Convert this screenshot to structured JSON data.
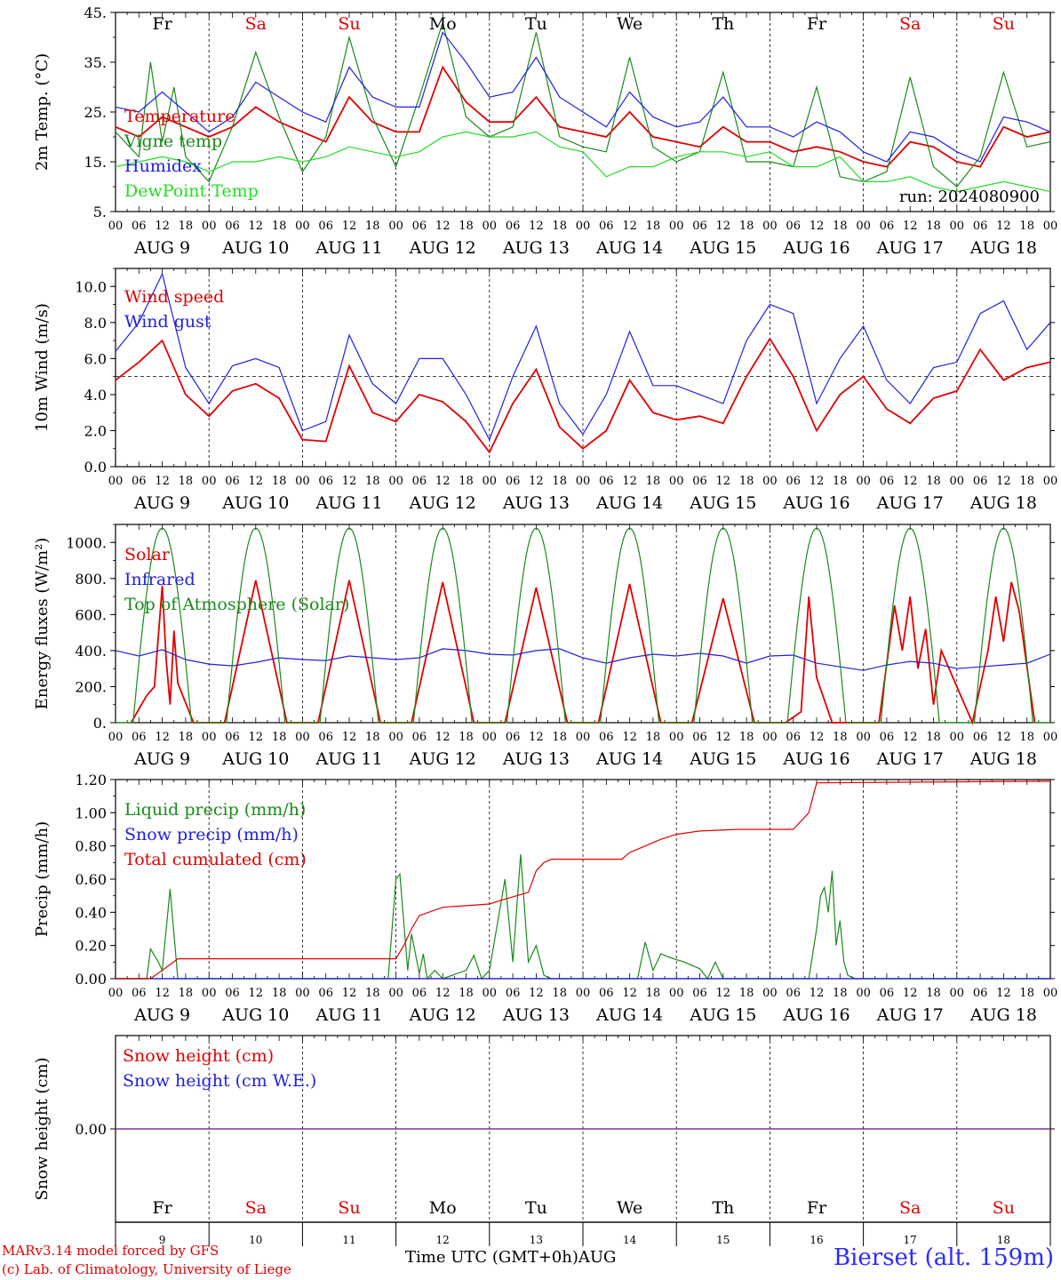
{
  "footer": {
    "credit_line1": "MARv3.14 model forced by GFS",
    "credit_line2": "(c) Lab. of Climatology, University of Liege",
    "station": "Bierset (alt. 159m)",
    "xaxis_title": "Time UTC (GMT+0h)AUG"
  },
  "colors": {
    "red": "#e00000",
    "green": "#1a8a1a",
    "blue": "#2020e0",
    "lightgreen": "#22dd22",
    "purple": "#7a2a9a"
  },
  "days": {
    "names": [
      "Fr",
      "Sa",
      "Su",
      "Mo",
      "Tu",
      "We",
      "Th",
      "Fr",
      "Sa",
      "Su"
    ],
    "weekend": [
      false,
      true,
      true,
      false,
      false,
      false,
      false,
      false,
      true,
      true
    ],
    "dates": [
      "AUG  9",
      "AUG 10",
      "AUG 11",
      "AUG 12",
      "AUG 13",
      "AUG 14",
      "AUG 15",
      "AUG 16",
      "AUG 17",
      "AUG 18"
    ],
    "numbers": [
      "9",
      "10",
      "11",
      "12",
      "13",
      "14",
      "15",
      "16",
      "17",
      "18"
    ],
    "hour_ticks": [
      "00",
      "06",
      "12",
      "18"
    ],
    "final_tick": "00"
  },
  "chart_data": [
    {
      "type": "line",
      "ylabel": "2m Temp. (°C)",
      "ylim": [
        5,
        45
      ],
      "yticks": [
        "5.",
        "15.",
        "25.",
        "35.",
        "45."
      ],
      "ytick_values": [
        5,
        15,
        25,
        35,
        45
      ],
      "run_label": "run: 2024080900",
      "x_unit": "hours since AUG 9 00 UTC",
      "series": [
        {
          "name": "Temperature",
          "color": "red",
          "x": [
            0,
            6,
            12,
            18,
            24,
            30,
            36,
            42,
            48,
            54,
            60,
            66,
            72,
            78,
            84,
            90,
            96,
            102,
            108,
            114,
            120,
            126,
            132,
            138,
            144,
            150,
            156,
            162,
            168,
            174,
            180,
            186,
            192,
            198,
            204,
            210,
            216,
            222,
            228,
            234,
            240
          ],
          "y": [
            22,
            20,
            24,
            22,
            20,
            22,
            26,
            23,
            21,
            19,
            28,
            23,
            21,
            21,
            34,
            27,
            23,
            23,
            28,
            22,
            21,
            20,
            25,
            20,
            19,
            18,
            22,
            19,
            19,
            17,
            18,
            17,
            15,
            14,
            19,
            18,
            15,
            14,
            22,
            20,
            21
          ]
        },
        {
          "name": "Vigne temp",
          "color": "green",
          "x": [
            0,
            6,
            9,
            12,
            15,
            18,
            24,
            30,
            36,
            42,
            48,
            54,
            60,
            66,
            72,
            78,
            84,
            90,
            96,
            102,
            108,
            114,
            120,
            126,
            132,
            138,
            144,
            150,
            156,
            162,
            168,
            174,
            180,
            186,
            192,
            198,
            204,
            210,
            216,
            222,
            228,
            234,
            240
          ],
          "y": [
            21,
            16,
            35,
            19,
            30,
            16,
            11,
            22,
            37,
            24,
            13,
            20,
            40,
            24,
            14,
            28,
            43,
            24,
            20,
            22,
            41,
            20,
            18,
            17,
            36,
            18,
            15,
            17,
            33,
            15,
            15,
            14,
            30,
            12,
            11,
            13,
            32,
            14,
            10,
            16,
            33,
            18,
            19
          ]
        },
        {
          "name": "Humidex",
          "color": "blue",
          "x": [
            0,
            6,
            12,
            18,
            24,
            30,
            36,
            42,
            48,
            54,
            60,
            66,
            72,
            78,
            84,
            90,
            96,
            102,
            108,
            114,
            120,
            126,
            132,
            138,
            144,
            150,
            156,
            162,
            168,
            174,
            180,
            186,
            192,
            198,
            204,
            210,
            216,
            222,
            228,
            234,
            240
          ],
          "y": [
            26,
            25,
            29,
            25,
            21,
            24,
            31,
            28,
            25,
            23,
            34,
            28,
            26,
            26,
            41,
            35,
            28,
            29,
            36,
            28,
            25,
            22,
            29,
            24,
            22,
            23,
            28,
            22,
            22,
            20,
            23,
            21,
            17,
            15,
            21,
            20,
            17,
            15,
            24,
            23,
            21
          ]
        },
        {
          "name": "DewPoint Temp",
          "color": "lightgreen",
          "x": [
            0,
            6,
            12,
            18,
            24,
            30,
            36,
            42,
            48,
            54,
            60,
            66,
            72,
            78,
            84,
            90,
            96,
            102,
            108,
            114,
            120,
            126,
            132,
            138,
            144,
            150,
            156,
            162,
            168,
            174,
            180,
            186,
            192,
            198,
            204,
            210,
            216,
            222,
            228,
            234,
            240
          ],
          "y": [
            14,
            15,
            16,
            15,
            13,
            15,
            15,
            16,
            15,
            16,
            18,
            17,
            16,
            17,
            20,
            21,
            20,
            20,
            21,
            18,
            17,
            12,
            14,
            14,
            16,
            17,
            17,
            16,
            17,
            14,
            14,
            16,
            11,
            11,
            12,
            10,
            9,
            10,
            11,
            10,
            9
          ]
        }
      ]
    },
    {
      "type": "line",
      "ylabel": "10m Wind (m/s)",
      "ylim": [
        0,
        11
      ],
      "yticks": [
        "0.0",
        "2.0",
        "4.0",
        "6.0",
        "8.0",
        "10.0"
      ],
      "ytick_values": [
        0,
        2,
        4,
        6,
        8,
        10
      ],
      "reference_line": 5,
      "x_unit": "hours since AUG 9 00 UTC",
      "series": [
        {
          "name": "Wind speed",
          "color": "red",
          "x": [
            0,
            6,
            12,
            18,
            24,
            30,
            36,
            42,
            48,
            54,
            60,
            66,
            72,
            78,
            84,
            90,
            96,
            102,
            108,
            114,
            120,
            126,
            132,
            138,
            144,
            150,
            156,
            162,
            168,
            174,
            180,
            186,
            192,
            198,
            204,
            210,
            216,
            222,
            228,
            234,
            240
          ],
          "y": [
            4.8,
            5.8,
            7.0,
            4.0,
            2.8,
            4.2,
            4.6,
            3.8,
            1.5,
            1.4,
            5.6,
            3.0,
            2.5,
            4.0,
            3.6,
            2.5,
            0.8,
            3.5,
            5.4,
            2.2,
            1.0,
            2.0,
            4.8,
            3.0,
            2.6,
            2.8,
            2.4,
            5.0,
            7.1,
            5.0,
            2.0,
            4.0,
            5.0,
            3.2,
            2.4,
            3.8,
            4.2,
            6.5,
            4.8,
            5.5,
            5.8
          ]
        },
        {
          "name": "Wind gust",
          "color": "blue",
          "x": [
            0,
            6,
            12,
            18,
            24,
            30,
            36,
            42,
            48,
            54,
            60,
            66,
            72,
            78,
            84,
            90,
            96,
            102,
            108,
            114,
            120,
            126,
            132,
            138,
            144,
            150,
            156,
            162,
            168,
            174,
            180,
            186,
            192,
            198,
            204,
            210,
            216,
            222,
            228,
            234,
            240
          ],
          "y": [
            6.4,
            8.0,
            10.7,
            5.5,
            3.5,
            5.6,
            6.0,
            5.5,
            2.0,
            2.5,
            7.3,
            4.6,
            3.5,
            6.0,
            6.0,
            4.0,
            1.5,
            5.0,
            7.8,
            3.5,
            1.8,
            4.0,
            7.5,
            4.5,
            4.5,
            4.0,
            3.5,
            7.0,
            9.0,
            8.5,
            3.5,
            6.0,
            7.8,
            4.8,
            3.5,
            5.5,
            5.8,
            8.5,
            9.2,
            6.5,
            8.0
          ]
        }
      ]
    },
    {
      "type": "line",
      "ylabel": "Energy fluxes (W/m²)",
      "ylim": [
        0,
        1100
      ],
      "yticks": [
        "0.",
        "200.",
        "400.",
        "600.",
        "800.",
        "1000."
      ],
      "ytick_values": [
        0,
        200,
        400,
        600,
        800,
        1000
      ],
      "x_unit": "hours since AUG 9 00 UTC",
      "series": [
        {
          "name": "Solar",
          "color": "red",
          "x": [
            4,
            8,
            10,
            12,
            13,
            14,
            15,
            16,
            20,
            28,
            36,
            44,
            52,
            60,
            68,
            76,
            84,
            92,
            100,
            108,
            116,
            124,
            132,
            140,
            148,
            156,
            164,
            172,
            176,
            178,
            180,
            184,
            196,
            200,
            202,
            204,
            206,
            208,
            210,
            212,
            220,
            224,
            226,
            228,
            230,
            232,
            236
          ],
          "y": [
            0,
            150,
            200,
            760,
            350,
            100,
            510,
            220,
            0,
            0,
            790,
            0,
            0,
            790,
            0,
            0,
            780,
            0,
            0,
            750,
            0,
            0,
            770,
            0,
            0,
            690,
            0,
            0,
            60,
            700,
            250,
            0,
            0,
            650,
            400,
            700,
            300,
            520,
            100,
            400,
            0,
            400,
            700,
            450,
            780,
            620,
            0
          ]
        },
        {
          "name": "Infrared",
          "color": "blue",
          "x": [
            0,
            6,
            12,
            18,
            24,
            30,
            36,
            42,
            48,
            54,
            60,
            66,
            72,
            78,
            84,
            90,
            96,
            102,
            108,
            114,
            120,
            126,
            132,
            138,
            144,
            150,
            156,
            162,
            168,
            174,
            180,
            186,
            192,
            198,
            204,
            210,
            216,
            222,
            228,
            234,
            240
          ],
          "y": [
            400,
            370,
            405,
            350,
            325,
            315,
            335,
            360,
            350,
            345,
            370,
            360,
            350,
            360,
            410,
            400,
            380,
            375,
            400,
            410,
            360,
            330,
            360,
            380,
            370,
            385,
            370,
            330,
            370,
            375,
            330,
            310,
            290,
            320,
            340,
            330,
            300,
            310,
            320,
            330,
            380
          ]
        },
        {
          "name": "Top of Atmosphere (Solar)",
          "color": "green",
          "x": "toa",
          "y": "toa",
          "peak": 1080,
          "day_length_hours": 15
        }
      ]
    },
    {
      "type": "line",
      "ylabel": "Precip (mm/h)",
      "ylim": [
        0,
        1.2
      ],
      "yticks": [
        "0.00",
        "0.20",
        "0.40",
        "0.60",
        "0.80",
        "1.00",
        "1.20"
      ],
      "ytick_values": [
        0,
        0.2,
        0.4,
        0.6,
        0.8,
        1.0,
        1.2
      ],
      "x_unit": "hours since AUG 9 00 UTC",
      "series": [
        {
          "name": "Liquid precip (mm/h)",
          "color": "green",
          "x": [
            0,
            8,
            9,
            11,
            12,
            14,
            16,
            70,
            72,
            73,
            75,
            76,
            78,
            79,
            80,
            82,
            84,
            90,
            92,
            94,
            96,
            100,
            102,
            104,
            106,
            108,
            110,
            112,
            114,
            116,
            120,
            134,
            136,
            138,
            140,
            142,
            146,
            150,
            152,
            154,
            156,
            160,
            162,
            178,
            180,
            181,
            182,
            183,
            184,
            185,
            186,
            187,
            188,
            190,
            240
          ],
          "y": [
            0,
            0,
            0.18,
            0.1,
            0.05,
            0.54,
            0,
            0,
            0.6,
            0.63,
            0.05,
            0.27,
            0.03,
            0.15,
            0,
            0.05,
            0,
            0.05,
            0.14,
            0,
            0.05,
            0.6,
            0.1,
            0.75,
            0.1,
            0.2,
            0.02,
            0,
            0,
            0,
            0,
            0,
            0.22,
            0.05,
            0.15,
            0.13,
            0.1,
            0.06,
            0,
            0.1,
            0,
            0,
            0,
            0,
            0.3,
            0.5,
            0.55,
            0.4,
            0.65,
            0.2,
            0.35,
            0.1,
            0.02,
            0,
            0
          ]
        },
        {
          "name": "Snow precip (mm/h)",
          "color": "blue",
          "x": [
            0,
            240
          ],
          "y": [
            0,
            0
          ]
        },
        {
          "name": "Total cumulated (cm)",
          "color": "red",
          "x": [
            0,
            9,
            12,
            16,
            72,
            74,
            76,
            78,
            84,
            90,
            96,
            100,
            106,
            108,
            110,
            112,
            130,
            132,
            136,
            140,
            144,
            150,
            160,
            174,
            178,
            180,
            240
          ],
          "y": [
            0,
            0,
            0.05,
            0.12,
            0.12,
            0.2,
            0.3,
            0.38,
            0.43,
            0.44,
            0.45,
            0.48,
            0.52,
            0.65,
            0.7,
            0.72,
            0.72,
            0.76,
            0.8,
            0.84,
            0.87,
            0.89,
            0.9,
            0.9,
            1.0,
            1.18,
            1.19
          ]
        }
      ]
    },
    {
      "type": "line",
      "ylabel": "Snow height (cm)",
      "ylim": [
        -1,
        1
      ],
      "yticks": [
        "0.00"
      ],
      "ytick_values": [
        0
      ],
      "x_unit": "hours since AUG 9 00 UTC",
      "series": [
        {
          "name": "Snow height (cm)",
          "color": "red",
          "x": [
            0,
            240
          ],
          "y": [
            0,
            0
          ]
        },
        {
          "name": "Snow height (cm W.E.)",
          "color": "blue",
          "x": [
            0,
            240
          ],
          "y": [
            0,
            0
          ]
        }
      ]
    }
  ]
}
